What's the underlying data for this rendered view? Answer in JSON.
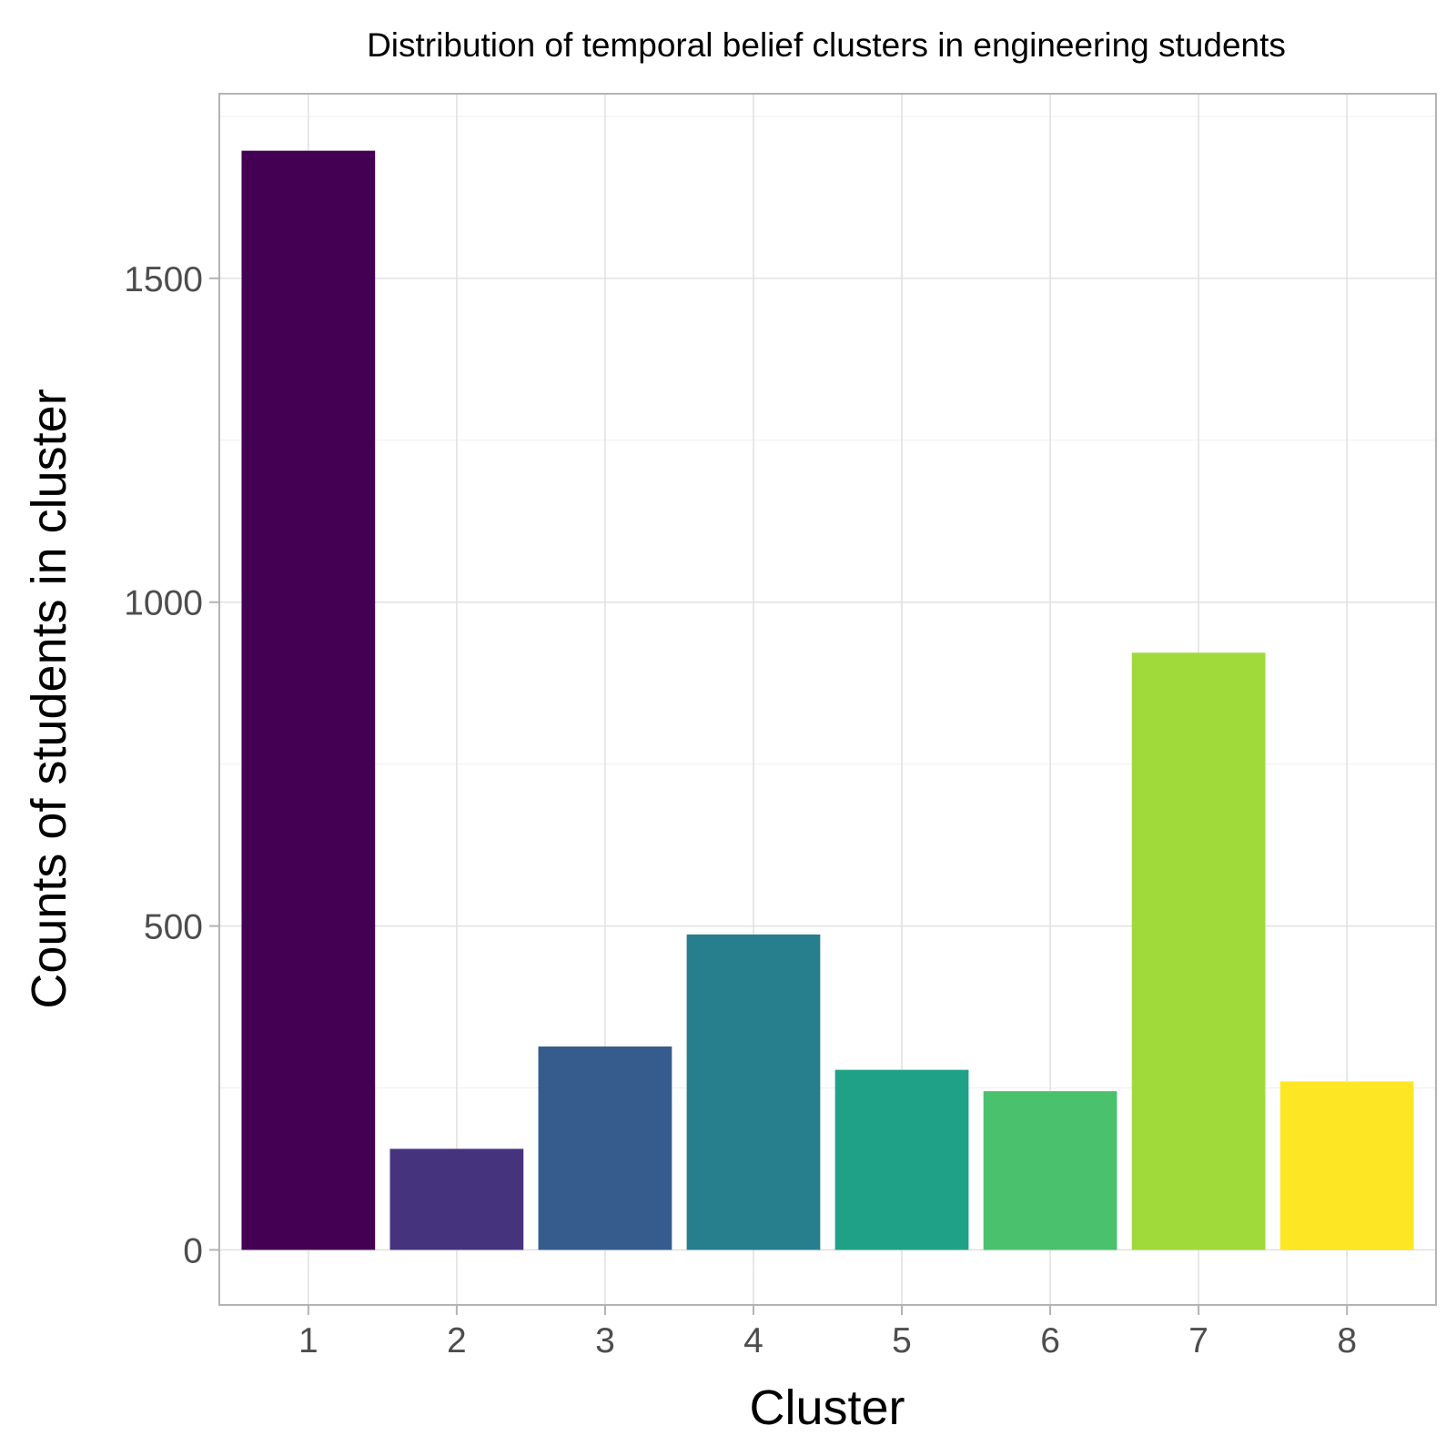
{
  "chart_data": {
    "type": "bar",
    "title": "Distribution of temporal belief clusters in engineering students",
    "xlabel": "Cluster",
    "ylabel": "Counts of students in cluster",
    "categories": [
      "1",
      "2",
      "3",
      "4",
      "5",
      "6",
      "7",
      "8"
    ],
    "values": [
      1697,
      156,
      314,
      487,
      278,
      245,
      922,
      260
    ],
    "colors": [
      "#440154",
      "#46337E",
      "#365C8D",
      "#277F8E",
      "#1FA187",
      "#4AC16D",
      "#9FDA3A",
      "#FDE725"
    ],
    "yticks": [
      "0",
      "500",
      "1000",
      "1500"
    ],
    "ylim": [
      -85,
      1785
    ],
    "grid": true,
    "legend": "none"
  }
}
